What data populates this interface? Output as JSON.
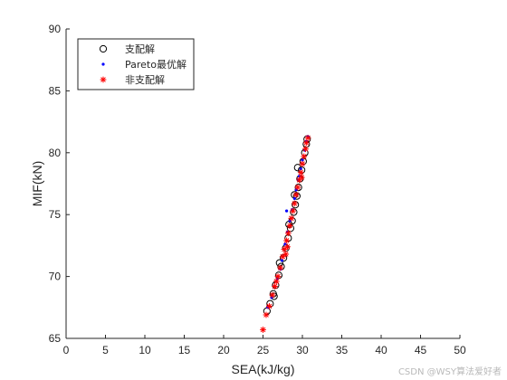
{
  "chart_data": {
    "type": "scatter",
    "xlabel": "SEA(kJ/kg)",
    "ylabel": "MIF(kN)",
    "xlim": [
      0,
      50
    ],
    "ylim": [
      65,
      90
    ],
    "xticks": [
      0,
      5,
      10,
      15,
      20,
      25,
      30,
      35,
      40,
      45,
      50
    ],
    "yticks": [
      65,
      70,
      75,
      80,
      85,
      90
    ],
    "grid": false,
    "legend_position": "top-left",
    "series": [
      {
        "name": "支配解",
        "marker": "circle",
        "color": "#000000",
        "points": [
          [
            25.5,
            67.2
          ],
          [
            25.9,
            67.8
          ],
          [
            26.3,
            68.6
          ],
          [
            26.6,
            69.3
          ],
          [
            27.0,
            70.1
          ],
          [
            27.3,
            70.8
          ],
          [
            27.6,
            71.5
          ],
          [
            27.9,
            72.3
          ],
          [
            28.2,
            73.1
          ],
          [
            28.5,
            73.9
          ],
          [
            28.7,
            74.5
          ],
          [
            28.9,
            75.2
          ],
          [
            29.1,
            75.8
          ],
          [
            29.3,
            76.5
          ],
          [
            29.5,
            77.2
          ],
          [
            29.7,
            77.9
          ],
          [
            29.9,
            78.6
          ],
          [
            30.1,
            79.3
          ],
          [
            30.3,
            80.0
          ],
          [
            30.5,
            80.7
          ],
          [
            30.6,
            81.1
          ],
          [
            29.4,
            78.8
          ],
          [
            28.3,
            74.2
          ],
          [
            26.4,
            68.4
          ],
          [
            27.1,
            71.1
          ],
          [
            29.0,
            76.6
          ]
        ]
      },
      {
        "name": "Pareto最优解",
        "marker": "dot",
        "color": "#0000ff",
        "points": [
          [
            25.6,
            67.5
          ],
          [
            26.1,
            68.3
          ],
          [
            26.8,
            69.8
          ],
          [
            27.4,
            71.3
          ],
          [
            27.8,
            72.6
          ],
          [
            28.1,
            73.6
          ],
          [
            28.4,
            74.5
          ],
          [
            28.7,
            75.4
          ],
          [
            29.0,
            76.3
          ],
          [
            29.2,
            77.0
          ],
          [
            29.5,
            77.8
          ],
          [
            29.8,
            78.7
          ],
          [
            30.0,
            79.4
          ],
          [
            30.3,
            80.2
          ],
          [
            30.5,
            80.9
          ],
          [
            30.7,
            81.3
          ],
          [
            28.0,
            75.3
          ],
          [
            29.6,
            78.1
          ],
          [
            27.2,
            70.6
          ]
        ]
      },
      {
        "name": "非支配解",
        "marker": "asterisk",
        "color": "#ff0000",
        "points": [
          [
            25.0,
            65.7
          ],
          [
            25.4,
            66.9
          ],
          [
            25.8,
            67.6
          ],
          [
            26.2,
            68.5
          ],
          [
            26.5,
            69.2
          ],
          [
            26.9,
            70.0
          ],
          [
            27.2,
            70.7
          ],
          [
            27.5,
            71.6
          ],
          [
            27.7,
            72.2
          ],
          [
            28.0,
            72.9
          ],
          [
            28.2,
            73.5
          ],
          [
            28.4,
            74.1
          ],
          [
            28.6,
            74.7
          ],
          [
            28.8,
            75.3
          ],
          [
            29.0,
            75.9
          ],
          [
            29.2,
            76.6
          ],
          [
            29.4,
            77.2
          ],
          [
            29.6,
            77.8
          ],
          [
            29.8,
            78.4
          ],
          [
            30.0,
            79.1
          ],
          [
            30.2,
            79.7
          ],
          [
            30.4,
            80.3
          ],
          [
            30.5,
            80.8
          ],
          [
            30.7,
            81.2
          ],
          [
            28.1,
            72.4
          ],
          [
            27.9,
            71.8
          ],
          [
            26.7,
            69.6
          ],
          [
            29.9,
            78.0
          ]
        ]
      }
    ]
  },
  "watermark": "CSDN @WSY算法爱好者"
}
